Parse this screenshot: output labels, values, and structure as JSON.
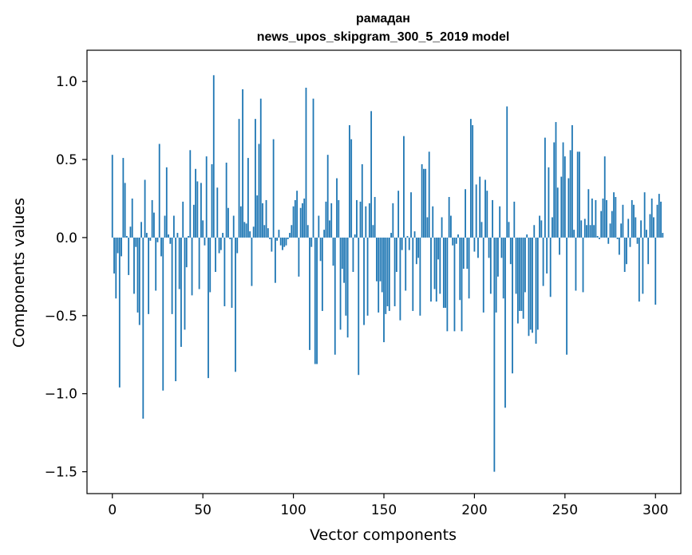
{
  "chart_data": {
    "type": "bar",
    "title": "рамадан",
    "subtitle": "news_upos_skipgram_300_5_2019 model",
    "xlabel": "Vector components",
    "ylabel": "Components values",
    "xlim": [
      -14,
      314
    ],
    "ylim": [
      -1.64,
      1.2
    ],
    "xticks": [
      0,
      50,
      100,
      150,
      200,
      250,
      300
    ],
    "yticks": [
      -1.5,
      -1.0,
      -0.5,
      0.0,
      0.5,
      1.0
    ],
    "ytick_labels": [
      "−1.5",
      "−1.0",
      "−0.5",
      "0.0",
      "0.5",
      "1.0"
    ],
    "bar_color": "#1f77b4",
    "grid": false,
    "legend": "none",
    "series": [
      {
        "values": [
          0.53,
          -0.23,
          -0.39,
          -0.1,
          -0.96,
          -0.12,
          0.51,
          0.35,
          0.01,
          -0.24,
          0.07,
          0.25,
          -0.36,
          -0.06,
          -0.48,
          -0.56,
          0.1,
          -1.16,
          0.37,
          0.03,
          -0.49,
          -0.02,
          0.24,
          0.16,
          -0.34,
          -0.03,
          0.6,
          -0.12,
          -0.98,
          0.14,
          0.45,
          0.02,
          -0.04,
          -0.49,
          0.14,
          -0.92,
          0.03,
          -0.33,
          -0.7,
          0.23,
          -0.59,
          -0.19,
          0.01,
          0.56,
          -0.37,
          0.21,
          0.44,
          0.36,
          -0.33,
          0.35,
          0.11,
          -0.05,
          0.52,
          -0.9,
          -0.35,
          0.47,
          1.04,
          -0.22,
          0.32,
          -0.1,
          -0.08,
          0.03,
          -0.44,
          0.48,
          0.19,
          -0.01,
          -0.45,
          0.14,
          -0.86,
          -0.1,
          0.76,
          0.2,
          0.95,
          0.1,
          0.09,
          0.51,
          0.04,
          -0.31,
          0.07,
          0.76,
          0.27,
          0.6,
          0.89,
          0.22,
          0.08,
          0.24,
          0.06,
          -0.01,
          -0.09,
          0.63,
          -0.29,
          -0.02,
          0.05,
          -0.05,
          -0.08,
          -0.06,
          -0.05,
          -0.01,
          0.03,
          0.08,
          0.2,
          0.24,
          0.3,
          -0.25,
          0.19,
          0.22,
          0.25,
          0.96,
          0.08,
          -0.72,
          -0.06,
          0.89,
          -0.81,
          -0.81,
          0.14,
          -0.15,
          -0.47,
          0.05,
          0.23,
          0.53,
          0.11,
          0.22,
          -0.18,
          -0.75,
          0.38,
          0.24,
          -0.59,
          -0.2,
          -0.29,
          -0.5,
          -0.64,
          0.72,
          0.63,
          -0.22,
          0.02,
          0.24,
          -0.88,
          0.23,
          0.47,
          -0.56,
          0.2,
          -0.5,
          0.22,
          0.81,
          0.08,
          0.26,
          -0.28,
          -0.48,
          -0.28,
          -0.35,
          -0.67,
          -0.49,
          -0.44,
          -0.47,
          0.03,
          0.22,
          -0.44,
          -0.22,
          0.3,
          -0.53,
          -0.08,
          0.65,
          -0.34,
          0.01,
          -0.08,
          0.29,
          -0.47,
          0.04,
          -0.17,
          -0.13,
          -0.5,
          0.47,
          0.44,
          0.44,
          0.13,
          0.55,
          -0.41,
          0.2,
          -0.33,
          -0.41,
          -0.14,
          -0.36,
          0.13,
          -0.45,
          -0.45,
          -0.6,
          0.26,
          0.14,
          -0.05,
          -0.6,
          -0.04,
          0.02,
          -0.4,
          -0.6,
          -0.2,
          0.31,
          -0.2,
          -0.39,
          0.76,
          0.72,
          -0.09,
          0.34,
          -0.13,
          0.39,
          0.1,
          -0.48,
          0.37,
          0.3,
          -0.13,
          -0.36,
          0.24,
          -1.5,
          -0.48,
          -0.25,
          0.2,
          -0.13,
          -0.39,
          -1.09,
          0.84,
          0.1,
          -0.17,
          -0.87,
          0.23,
          -0.36,
          -0.55,
          -0.47,
          -0.47,
          -0.52,
          -0.35,
          0.02,
          -0.63,
          -0.59,
          -0.61,
          0.08,
          -0.68,
          -0.59,
          0.14,
          0.11,
          -0.31,
          0.64,
          -0.23,
          0.45,
          -0.38,
          0.13,
          0.61,
          0.74,
          0.32,
          -0.11,
          0.39,
          0.61,
          0.52,
          -0.75,
          0.38,
          0.56,
          0.72,
          0.05,
          -0.34,
          0.55,
          0.55,
          0.11,
          -0.35,
          0.12,
          0.08,
          0.31,
          0.08,
          0.25,
          0.08,
          0.24,
          0.01,
          -0.01,
          0.17,
          0.25,
          0.52,
          0.24,
          -0.04,
          0.09,
          0.17,
          0.29,
          0.26,
          -0.01,
          -0.11,
          0.09,
          0.21,
          -0.22,
          -0.17,
          0.12,
          -0.06,
          0.24,
          0.21,
          0.13,
          -0.04,
          -0.41,
          0.11,
          -0.36,
          0.29,
          0.05,
          -0.17,
          0.15,
          0.25,
          0.13,
          -0.43,
          0.21,
          0.28,
          0.23,
          0.03
        ]
      }
    ]
  }
}
